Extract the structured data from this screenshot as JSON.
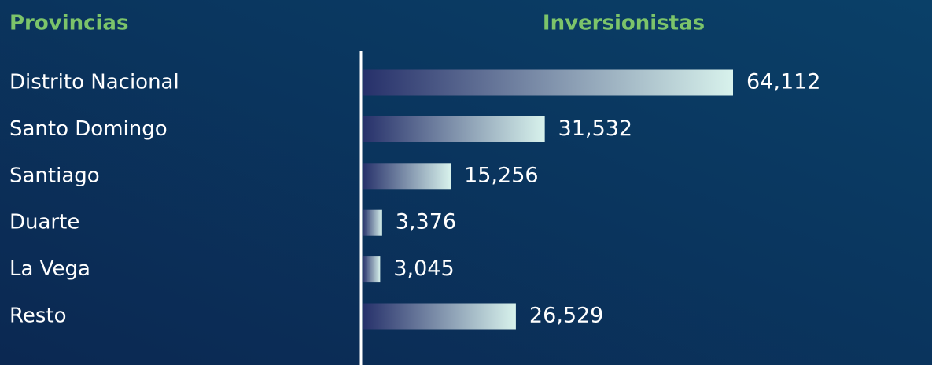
{
  "chart_data": {
    "type": "hbar",
    "category_header": "Provincias",
    "value_header": "Inversionistas",
    "categories": [
      "Distrito Nacional",
      "Santo Domingo",
      "Santiago",
      "Duarte",
      "La Vega",
      "Resto"
    ],
    "values": [
      64112,
      31532,
      15256,
      3376,
      3045,
      26529
    ],
    "value_labels": [
      "64,112",
      "31,532",
      "15,256",
      "3,376",
      "3,045",
      "26,529"
    ],
    "colors": [
      "#26306a",
      "#d8f2ec"
    ]
  }
}
